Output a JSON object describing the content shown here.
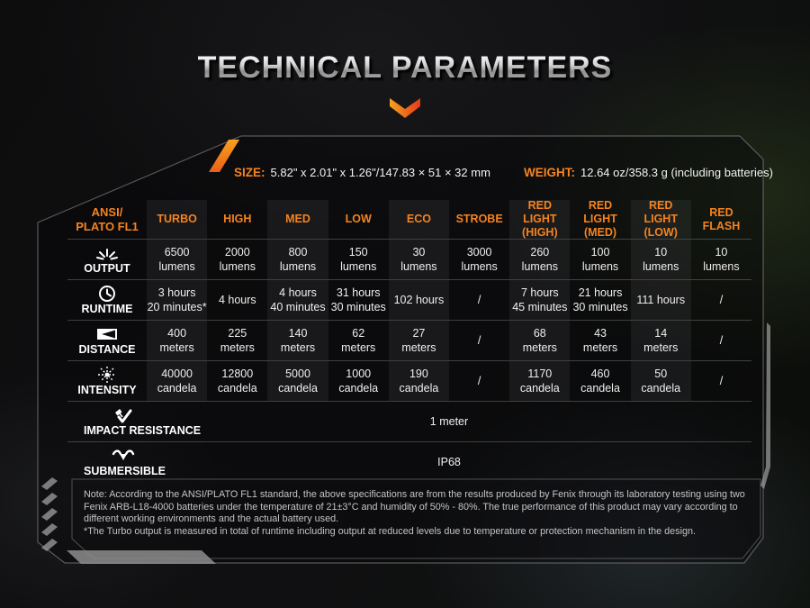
{
  "title": "TECHNICAL PARAMETERS",
  "specs": {
    "size_label": "SIZE:",
    "size_value": "5.82\" x 2.01\" x 1.26\"/147.83 × 51 × 32 mm",
    "weight_label": "WEIGHT:",
    "weight_value": "12.64 oz/358.3 g (including batteries)"
  },
  "table": {
    "corner": [
      "ANSI/",
      "PLATO FL1"
    ],
    "headers": [
      [
        "TURBO"
      ],
      [
        "HIGH"
      ],
      [
        "MED"
      ],
      [
        "LOW"
      ],
      [
        "ECO"
      ],
      [
        "STROBE"
      ],
      [
        "RED LIGHT",
        "(HIGH)"
      ],
      [
        "RED LIGHT",
        "(MED)"
      ],
      [
        "RED LIGHT",
        "(LOW)"
      ],
      [
        "RED",
        "FLASH"
      ]
    ],
    "shaded_columns": [
      0,
      2,
      4,
      6,
      8
    ],
    "rows": [
      {
        "label": "OUTPUT",
        "icon": "output-rays-icon",
        "cells": [
          [
            "6500",
            "lumens"
          ],
          [
            "2000",
            "lumens"
          ],
          [
            "800",
            "lumens"
          ],
          [
            "150",
            "lumens"
          ],
          [
            "30",
            "lumens"
          ],
          [
            "3000",
            "lumens"
          ],
          [
            "260",
            "lumens"
          ],
          [
            "100",
            "lumens"
          ],
          [
            "10",
            "lumens"
          ],
          [
            "10",
            "lumens"
          ]
        ]
      },
      {
        "label": "RUNTIME",
        "icon": "runtime-clock-icon",
        "cells": [
          [
            "3 hours",
            "20 minutes*"
          ],
          [
            "4 hours"
          ],
          [
            "4 hours",
            "40 minutes"
          ],
          [
            "31 hours",
            "30 minutes"
          ],
          [
            "102 hours"
          ],
          [
            "/"
          ],
          [
            "7 hours",
            "45 minutes"
          ],
          [
            "21 hours",
            "30 minutes"
          ],
          [
            "111 hours"
          ],
          [
            "/"
          ]
        ]
      },
      {
        "label": "DISTANCE",
        "icon": "distance-beam-icon",
        "cells": [
          [
            "400",
            "meters"
          ],
          [
            "225",
            "meters"
          ],
          [
            "140",
            "meters"
          ],
          [
            "62",
            "meters"
          ],
          [
            "27",
            "meters"
          ],
          [
            "/"
          ],
          [
            "68",
            "meters"
          ],
          [
            "43",
            "meters"
          ],
          [
            "14",
            "meters"
          ],
          [
            "/"
          ]
        ]
      },
      {
        "label": "INTENSITY",
        "icon": "intensity-crosshair-icon",
        "cells": [
          [
            "40000",
            "candela"
          ],
          [
            "12800",
            "candela"
          ],
          [
            "5000",
            "candela"
          ],
          [
            "1000",
            "candela"
          ],
          [
            "190",
            "candela"
          ],
          [
            "/"
          ],
          [
            "1170",
            "candela"
          ],
          [
            "460",
            "candela"
          ],
          [
            "50",
            "candela"
          ],
          [
            "/"
          ]
        ]
      }
    ],
    "full_rows": [
      {
        "label": "IMPACT RESISTANCE",
        "icon": "impact-resistance-icon",
        "value": "1 meter"
      },
      {
        "label": "SUBMERSIBLE",
        "icon": "submersible-icon",
        "value": "IP68"
      }
    ]
  },
  "note": {
    "main": "Note: According to the ANSI/PLATO FL1 standard, the above specifications are from the results produced by Fenix through its laboratory testing using two Fenix ARB-L18-4000 batteries under the temperature of 21±3°C and humidity of 50% - 80%. The true performance of this product may vary according to different working environments and the actual battery used.",
    "footnote": "*The Turbo output is measured in total of runtime including output at reduced levels due to temperature or protection mechanism in the design."
  },
  "colors": {
    "accent_orange": "#f5831f",
    "value_text": "#efefef",
    "note_text": "#c4c4c4",
    "frame_line": "#8e8e8e",
    "chevron_gradient_start": "#f7a21d",
    "chevron_gradient_end": "#e23a1c"
  }
}
